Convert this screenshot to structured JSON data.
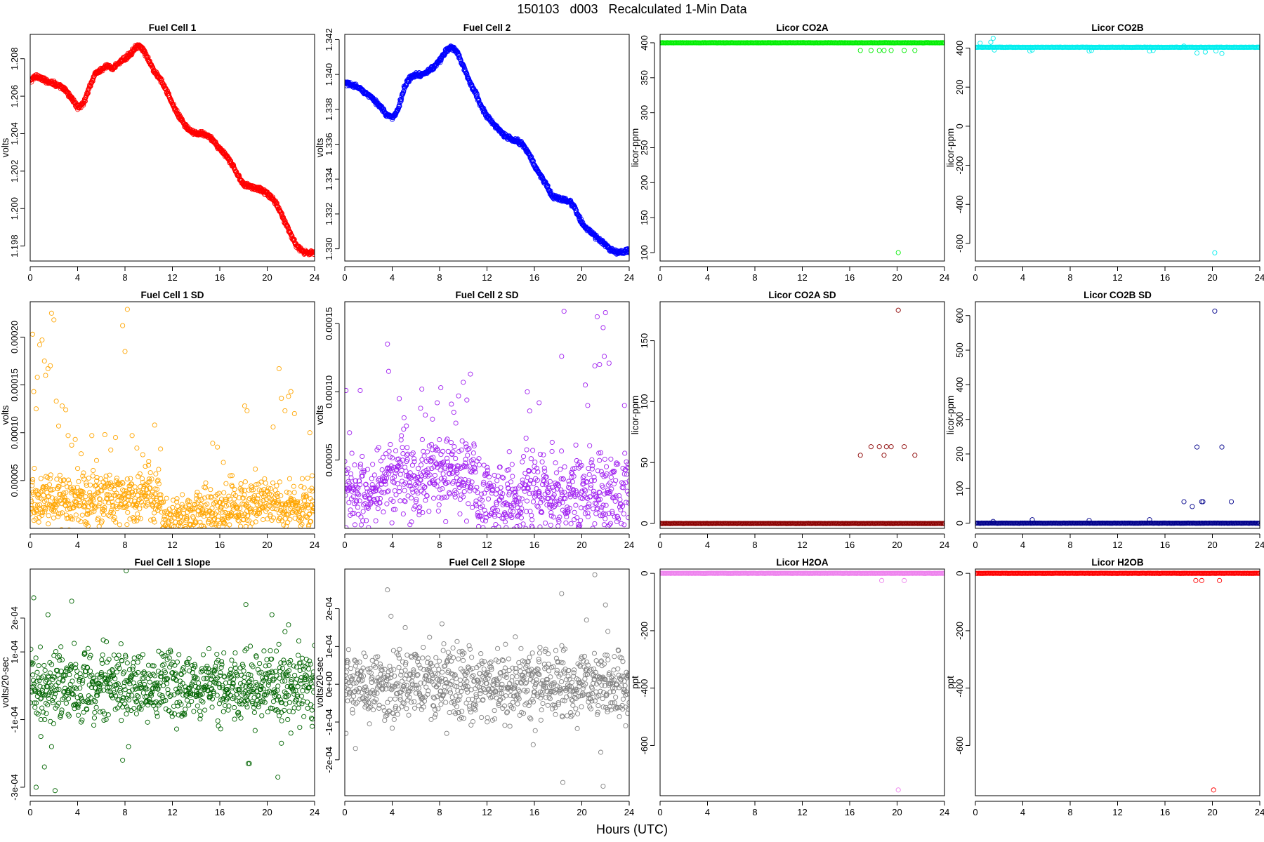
{
  "figure": {
    "title": "150103   d003   Recalculated 1-Min Data",
    "xlabel": "Hours (UTC)"
  },
  "colors": {
    "fuel_cell_1": "#ff0000",
    "fuel_cell_2": "#0000ff",
    "licor_co2a": "#00ee00",
    "licor_co2b": "#00eeee",
    "fuel_cell_1_sd": "#ffa500",
    "fuel_cell_2_sd": "#a020f0",
    "licor_co2a_sd": "#8b0000",
    "licor_co2b_sd": "#00008b",
    "fuel_cell_1_slope": "#006400",
    "fuel_cell_2_slope": "#808080",
    "licor_h2oa": "#ee82ee",
    "licor_h2ob": "#ff0000"
  },
  "chart_data": [
    {
      "type": "scatter",
      "title": "Fuel Cell 1",
      "xlabel": "",
      "ylabel": "volts",
      "xlim": [
        0,
        24
      ],
      "ylim": [
        1.1972,
        1.2093
      ],
      "xticks": [
        0,
        4,
        8,
        12,
        16,
        20,
        24
      ],
      "yticks": [
        1.198,
        1.2,
        1.202,
        1.204,
        1.206,
        1.208
      ],
      "ytick_labels": [
        "1.198",
        "1.200",
        "1.202",
        "1.204",
        "1.206",
        "1.208"
      ],
      "x": [
        0,
        0.5,
        1,
        1.5,
        2,
        2.5,
        3,
        3.5,
        4,
        4.5,
        5,
        5.5,
        6,
        6.5,
        7,
        7.5,
        8,
        8.5,
        9,
        9.5,
        10,
        10.5,
        11,
        11.5,
        12,
        12.5,
        13,
        13.5,
        14,
        14.5,
        15,
        15.5,
        16,
        16.5,
        17,
        17.5,
        18,
        18.5,
        19,
        19.5,
        20,
        20.5,
        21,
        21.5,
        22,
        22.5,
        23,
        23.5,
        24
      ],
      "y": [
        1.2068,
        1.2071,
        1.2069,
        1.2068,
        1.2067,
        1.2065,
        1.2063,
        1.2059,
        1.2054,
        1.2056,
        1.2065,
        1.2072,
        1.2074,
        1.2076,
        1.2075,
        1.2078,
        1.208,
        1.2083,
        1.2087,
        1.2085,
        1.2079,
        1.2073,
        1.2069,
        1.2063,
        1.2056,
        1.205,
        1.2045,
        1.2041,
        1.204,
        1.204,
        1.2039,
        1.2036,
        1.2032,
        1.2028,
        1.2024,
        1.2018,
        1.2013,
        1.2012,
        1.2011,
        1.201,
        1.2008,
        1.2005,
        1.2,
        1.1993,
        1.1986,
        1.198,
        1.1977,
        1.1976,
        1.1977
      ]
    },
    {
      "type": "scatter",
      "title": "Fuel Cell 2",
      "xlabel": "",
      "ylabel": "volts",
      "xlim": [
        0,
        24
      ],
      "ylim": [
        1.3293,
        1.3423
      ],
      "xticks": [
        0,
        4,
        8,
        12,
        16,
        20,
        24
      ],
      "yticks": [
        1.33,
        1.332,
        1.334,
        1.336,
        1.338,
        1.34,
        1.342
      ],
      "ytick_labels": [
        "1.330",
        "1.332",
        "1.334",
        "1.336",
        "1.338",
        "1.340",
        "1.342"
      ],
      "x": [
        0,
        0.5,
        1,
        1.5,
        2,
        2.5,
        3,
        3.5,
        4,
        4.5,
        5,
        5.5,
        6,
        6.5,
        7,
        7.5,
        8,
        8.5,
        9,
        9.5,
        10,
        10.5,
        11,
        11.5,
        12,
        12.5,
        13,
        13.5,
        14,
        14.5,
        15,
        15.5,
        16,
        16.5,
        17,
        17.5,
        18,
        18.5,
        19,
        19.5,
        20,
        20.5,
        21,
        21.5,
        22,
        22.5,
        23,
        23.5,
        24
      ],
      "y": [
        1.3395,
        1.3394,
        1.3393,
        1.3391,
        1.3388,
        1.3385,
        1.3382,
        1.3377,
        1.3375,
        1.338,
        1.3392,
        1.3398,
        1.34,
        1.34,
        1.3402,
        1.3404,
        1.3408,
        1.3413,
        1.3416,
        1.3413,
        1.3405,
        1.3396,
        1.339,
        1.3382,
        1.3376,
        1.3372,
        1.3368,
        1.3365,
        1.3363,
        1.3362,
        1.336,
        1.3355,
        1.3348,
        1.3342,
        1.3337,
        1.333,
        1.3329,
        1.3328,
        1.3327,
        1.3322,
        1.3315,
        1.3311,
        1.3308,
        1.3305,
        1.3302,
        1.3299,
        1.3298,
        1.3298,
        1.3299
      ]
    },
    {
      "type": "scatter",
      "title": "Licor CO2A",
      "xlabel": "",
      "ylabel": "licor-ppm",
      "xlim": [
        0,
        24
      ],
      "ylim": [
        88,
        412
      ],
      "xticks": [
        0,
        4,
        8,
        12,
        16,
        20,
        24
      ],
      "yticks": [
        100,
        150,
        200,
        250,
        300,
        350,
        400
      ],
      "ytick_labels": [
        "100",
        "150",
        "200",
        "250",
        "300",
        "350",
        "400"
      ],
      "band": {
        "x": [
          0,
          24
        ],
        "y": 400
      },
      "x": [
        16.9,
        17.8,
        18.5,
        18.9,
        19.5,
        20.6,
        21.5,
        20.1
      ],
      "y": [
        389,
        389,
        389,
        389,
        389,
        389,
        389,
        100
      ]
    },
    {
      "type": "scatter",
      "title": "Licor CO2B",
      "xlabel": "",
      "ylabel": "licor-ppm",
      "xlim": [
        0,
        24
      ],
      "ylim": [
        -690,
        470
      ],
      "xticks": [
        0,
        4,
        8,
        12,
        16,
        20,
        24
      ],
      "yticks": [
        -600,
        -400,
        -200,
        0,
        200,
        400
      ],
      "ytick_labels": [
        "-600",
        "-400",
        "-200",
        "0",
        "200",
        "400"
      ],
      "band": {
        "x": [
          0,
          24
        ],
        "y": 404
      },
      "x": [
        0.4,
        1.3,
        1.5,
        1.6,
        4.6,
        4.8,
        9.6,
        9.8,
        14.7,
        15.0,
        17.6,
        18.7,
        19.4,
        20.3,
        20.8,
        20.2
      ],
      "y": [
        425,
        430,
        450,
        390,
        385,
        390,
        385,
        388,
        385,
        388,
        410,
        375,
        380,
        385,
        372,
        -648
      ]
    },
    {
      "type": "scatter",
      "title": "Fuel Cell 1 SD",
      "xlabel": "",
      "ylabel": "volts",
      "xlim": [
        0,
        24
      ],
      "ylim": [
        0,
        0.000237
      ],
      "xticks": [
        0,
        4,
        8,
        12,
        16,
        20,
        24
      ],
      "yticks": [
        5e-05,
        0.0001,
        0.00015,
        0.0002
      ],
      "ytick_labels": [
        "0.00005",
        "0.00010",
        "0.00015",
        "0.00020"
      ],
      "x": [
        0.2,
        0.3,
        0.5,
        0.6,
        0.8,
        1.0,
        1.2,
        1.3,
        1.5,
        1.7,
        1.8,
        2.0,
        2.2,
        2.4,
        2.7,
        3.0,
        3.2,
        3.5,
        3.8,
        4.3,
        4.5,
        5.2,
        5.6,
        6.3,
        6.8,
        7.2,
        7.8,
        8.0,
        8.2,
        8.6,
        9.0,
        9.5,
        10.0,
        10.5,
        11.0,
        15.4,
        15.8,
        16.3,
        18.1,
        18.3,
        19.0,
        20.5,
        21.0,
        21.2,
        21.5,
        21.8,
        22.0,
        22.3,
        23.6,
        23.8
      ],
      "y": [
        0.000203,
        0.000143,
        0.000125,
        0.000158,
        0.000192,
        0.000197,
        0.000175,
        0.00016,
        0.000167,
        0.00017,
        0.000225,
        0.000218,
        0.000133,
        0.000107,
        0.000128,
        0.000124,
        9.7e-05,
        8.7e-05,
        9.3e-05,
        7.8e-05,
        5.8e-05,
        9.7e-05,
        7.1e-05,
        9.8e-05,
        8.2e-05,
        9.5e-05,
        0.000212,
        0.000185,
        0.000229,
        9.7e-05,
        8.4e-05,
        7.7e-05,
        7e-05,
        0.000108,
        8.3e-05,
        8.9e-05,
        8.5e-05,
        6.9e-05,
        0.000128,
        0.000123,
        6.2e-05,
        0.000106,
        0.000167,
        0.000136,
        0.000123,
        0.000138,
        0.000143,
        0.00012,
        0.0001,
        5.5e-05
      ],
      "baseline": {
        "segments": [
          [
            0,
            4,
            3e-05
          ],
          [
            4,
            8,
            3.2e-05
          ],
          [
            8,
            11,
            3.4e-05
          ],
          [
            11,
            14,
            1.2e-05
          ],
          [
            14,
            17,
            2e-05
          ],
          [
            17,
            21,
            2.6e-05
          ],
          [
            21,
            24,
            2.2e-05
          ]
        ],
        "spread": 1.3e-05
      }
    },
    {
      "type": "scatter",
      "title": "Fuel Cell 2 SD",
      "xlabel": "",
      "ylabel": "volts",
      "xlim": [
        0,
        24
      ],
      "ylim": [
        0,
        0.000166
      ],
      "xticks": [
        0,
        4,
        8,
        12,
        16,
        20,
        24
      ],
      "yticks": [
        5e-05,
        0.0001,
        0.00015
      ],
      "ytick_labels": [
        "0.00005",
        "0.00010",
        "0.00015"
      ],
      "x": [
        0.1,
        0.4,
        0.6,
        1.3,
        3.6,
        3.7,
        4.6,
        5.0,
        5.2,
        6.4,
        6.5,
        6.8,
        7.4,
        7.8,
        8.1,
        9.0,
        9.2,
        9.6,
        10.0,
        10.3,
        10.6,
        15.4,
        15.6,
        16.4,
        17.5,
        18.3,
        18.5,
        19.5,
        20.3,
        20.5,
        21.1,
        21.3,
        21.5,
        21.8,
        21.9,
        22.0,
        22.3,
        23.6
      ],
      "y": [
        0.000101,
        7e-05,
        5.5e-05,
        0.000101,
        0.000135,
        0.000115,
        9.5e-05,
        8.1e-05,
        7.5e-05,
        8.8e-05,
        0.000102,
        8.3e-05,
        8e-05,
        9.2e-05,
        0.000103,
        9.1e-05,
        8.5e-05,
        9.7e-05,
        0.000107,
        9.4e-05,
        0.000113,
        0.0001,
        8.6e-05,
        9.2e-05,
        6.3e-05,
        0.000126,
        0.000159,
        6.1e-05,
        0.000105,
        9e-05,
        0.000119,
        0.000155,
        0.00012,
        0.000147,
        0.000126,
        0.000158,
        0.000121,
        9e-05
      ],
      "baseline": {
        "segments": [
          [
            0,
            3,
            2.4e-05
          ],
          [
            3,
            7,
            3.8e-05
          ],
          [
            7,
            11,
            4.2e-05
          ],
          [
            11,
            15,
            2e-05
          ],
          [
            15,
            17,
            2.6e-05
          ],
          [
            17,
            24,
            2.4e-05
          ]
        ],
        "spread": 1.4e-05
      }
    },
    {
      "type": "scatter",
      "title": "Licor CO2A SD",
      "xlabel": "",
      "ylabel": "licor-ppm",
      "xlim": [
        0,
        24
      ],
      "ylim": [
        -4,
        182
      ],
      "xticks": [
        0,
        4,
        8,
        12,
        16,
        20,
        24
      ],
      "yticks": [
        0,
        50,
        100,
        150
      ],
      "ytick_labels": [
        "0",
        "50",
        "100",
        "150"
      ],
      "band": {
        "x": [
          0,
          24
        ],
        "y": 0
      },
      "x": [
        16.9,
        17.8,
        18.5,
        18.9,
        19.1,
        19.5,
        20.6,
        21.5,
        20.1
      ],
      "y": [
        56,
        63,
        63,
        56,
        63,
        63,
        63,
        56,
        175
      ]
    },
    {
      "type": "scatter",
      "title": "Licor CO2B SD",
      "xlabel": "",
      "ylabel": "licor-ppm",
      "xlim": [
        0,
        24
      ],
      "ylim": [
        -15,
        640
      ],
      "xticks": [
        0,
        4,
        8,
        12,
        16,
        20,
        24
      ],
      "yticks": [
        0,
        100,
        200,
        300,
        400,
        500,
        600
      ],
      "ytick_labels": [
        "0",
        "100",
        "200",
        "300",
        "400",
        "500",
        "600"
      ],
      "band": {
        "x": [
          0,
          24
        ],
        "y": 0
      },
      "x": [
        1.5,
        4.8,
        9.6,
        14.7,
        17.6,
        18.3,
        18.7,
        19.1,
        19.2,
        20.2,
        20.8,
        21.6
      ],
      "y": [
        5,
        10,
        8,
        10,
        62,
        48,
        220,
        62,
        62,
        613,
        220,
        62
      ]
    },
    {
      "type": "scatter",
      "title": "Fuel Cell 1 Slope",
      "xlabel": "",
      "ylabel": "volts/20-sec",
      "xlim": [
        0,
        24
      ],
      "ylim": [
        -0.000325,
        0.000345
      ],
      "xticks": [
        0,
        4,
        8,
        12,
        16,
        20,
        24
      ],
      "yticks": [
        -0.0003,
        -0.0001,
        0.0001,
        0.0002
      ],
      "ytick_labels": [
        "-3e-04",
        "-1e-04",
        "1e-04",
        "2e-04"
      ],
      "x": [
        0.3,
        0.5,
        0.9,
        1.2,
        1.5,
        1.8,
        2.1,
        3.5,
        7.8,
        8.1,
        8.3,
        18.2,
        18.4,
        18.5,
        20.4,
        20.9,
        21.2,
        21.5,
        21.8,
        22.0,
        23.8
      ],
      "y": [
        0.00026,
        -0.0003,
        -0.00015,
        -0.00024,
        0.00021,
        -0.00018,
        -0.00031,
        0.00025,
        -0.00022,
        0.00034,
        -0.00018,
        0.00024,
        -0.00023,
        -0.00023,
        0.00021,
        -0.00027,
        -0.00017,
        0.00016,
        0.00018,
        -0.00014,
        -0.00012
      ],
      "baseline": {
        "segments": [
          [
            0,
            3,
            0.0
          ],
          [
            3,
            10,
            0.0
          ],
          [
            10,
            15,
            0.0
          ],
          [
            15,
            24,
            0.0
          ]
        ],
        "spread": 5e-05
      }
    },
    {
      "type": "scatter",
      "title": "Fuel Cell 2 Slope",
      "xlabel": "",
      "ylabel": "volts/20-sec",
      "xlim": [
        0,
        24
      ],
      "ylim": [
        -0.000295,
        0.000305
      ],
      "xticks": [
        0,
        4,
        8,
        12,
        16,
        20,
        24
      ],
      "yticks": [
        -0.0002,
        -0.0001,
        0.0,
        0.0001,
        0.0002
      ],
      "ytick_labels": [
        "-2e-04",
        "-1e-04",
        "0e+00",
        "1e-04",
        "2e-04"
      ],
      "x": [
        0.1,
        0.9,
        3.6,
        3.9,
        5.1,
        8.2,
        8.6,
        15.9,
        18.3,
        18.4,
        20.4,
        21.1,
        21.6,
        21.8,
        22.0,
        22.2,
        23.7
      ],
      "y": [
        -0.00013,
        -0.00017,
        0.00025,
        0.00018,
        0.00015,
        0.00016,
        -0.00013,
        -0.00016,
        0.00024,
        -0.00026,
        0.00017,
        0.00029,
        -0.00018,
        -0.00027,
        0.00021,
        0.00014,
        -0.00011
      ],
      "baseline": {
        "segments": [
          [
            0,
            3,
            0.0
          ],
          [
            3,
            10,
            0.0
          ],
          [
            10,
            15,
            0.0
          ],
          [
            15,
            24,
            0.0
          ]
        ],
        "spread": 4.5e-05
      }
    },
    {
      "type": "scatter",
      "title": "Licor H2OA",
      "xlabel": "",
      "ylabel": "ppt",
      "xlim": [
        0,
        24
      ],
      "ylim": [
        -775,
        15
      ],
      "xticks": [
        0,
        4,
        8,
        12,
        16,
        20,
        24
      ],
      "yticks": [
        -600,
        -400,
        -200,
        0
      ],
      "ytick_labels": [
        "-600",
        "-400",
        "-200",
        "0"
      ],
      "band": {
        "x": [
          0,
          24
        ],
        "y": 0
      },
      "x": [
        18.7,
        20.6,
        20.1
      ],
      "y": [
        -25,
        -25,
        -755
      ]
    },
    {
      "type": "scatter",
      "title": "Licor H2OB",
      "xlabel": "",
      "ylabel": "ppt",
      "xlim": [
        0,
        24
      ],
      "ylim": [
        -775,
        15
      ],
      "xticks": [
        0,
        4,
        8,
        12,
        16,
        20,
        24
      ],
      "yticks": [
        -600,
        -400,
        -200,
        0
      ],
      "ytick_labels": [
        "-600",
        "-400",
        "-200",
        "0"
      ],
      "band": {
        "x": [
          0,
          24
        ],
        "y": 0
      },
      "x": [
        18.6,
        19.1,
        20.6,
        20.1
      ],
      "y": [
        -25,
        -25,
        -25,
        -755
      ]
    }
  ]
}
